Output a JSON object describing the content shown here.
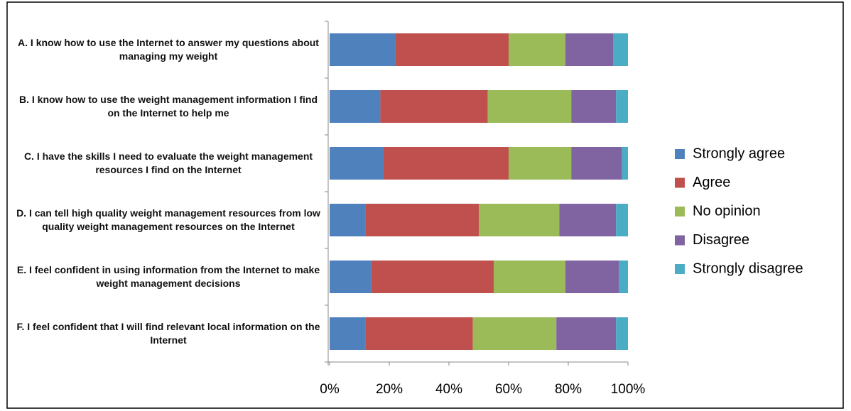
{
  "chart_data": {
    "type": "stacked-bar-horizontal",
    "categories": [
      "A. I know how to use the Internet to answer my questions about managing my weight",
      "B. I know how to use the weight management information I find on the Internet to help me",
      "C. I have the skills I need to evaluate the weight management resources I find on the Internet",
      "D. I can tell high quality weight management resources from low quality weight management resources on the Internet",
      "E. I feel confident in using information from the Internet to make weight management decisions",
      "F. I feel confident that I will find relevant local information on the Internet"
    ],
    "series": [
      {
        "name": "Strongly agree",
        "color": "#4f81bd",
        "values": [
          22,
          17,
          18,
          12,
          14,
          12
        ]
      },
      {
        "name": "Agree",
        "color": "#c0504d",
        "values": [
          38,
          36,
          42,
          38,
          41,
          36
        ]
      },
      {
        "name": "No opinion",
        "color": "#9bbb59",
        "values": [
          19,
          28,
          21,
          27,
          24,
          28
        ]
      },
      {
        "name": "Disagree",
        "color": "#8064a2",
        "values": [
          16,
          15,
          17,
          19,
          18,
          20
        ]
      },
      {
        "name": "Strongly disagree",
        "color": "#4bacc6",
        "values": [
          5,
          4,
          2,
          4,
          3,
          4
        ]
      }
    ],
    "xlim": [
      0,
      100
    ],
    "xticks": [
      {
        "value": 0,
        "label": "0%"
      },
      {
        "value": 20,
        "label": "20%"
      },
      {
        "value": 40,
        "label": "40%"
      },
      {
        "value": 60,
        "label": "60%"
      },
      {
        "value": 80,
        "label": "80%"
      },
      {
        "value": 100,
        "label": "100%"
      }
    ],
    "grid": false,
    "legend_position": "right"
  }
}
